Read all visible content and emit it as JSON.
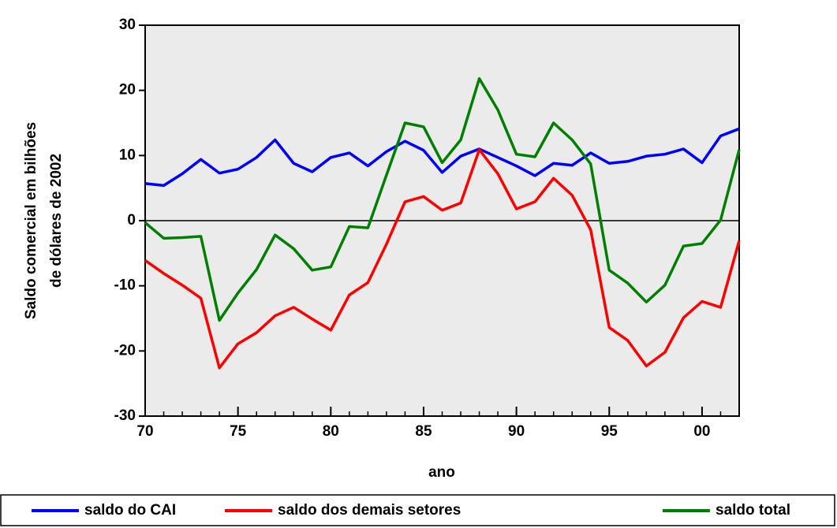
{
  "chart_data": {
    "type": "line",
    "ylabel": [
      "Saldo comercial em bilhões",
      "de dólares de 2002"
    ],
    "xlabel": "ano",
    "x": [
      1970,
      1971,
      1972,
      1973,
      1974,
      1975,
      1976,
      1977,
      1978,
      1979,
      1980,
      1981,
      1982,
      1983,
      1984,
      1985,
      1986,
      1987,
      1988,
      1989,
      1990,
      1991,
      1992,
      1993,
      1994,
      1995,
      1996,
      1997,
      1998,
      1999,
      2000,
      2001,
      2002
    ],
    "series": [
      {
        "name": "saldo do CAI",
        "color": "#0000ff",
        "values": [
          5.7,
          5.4,
          7.2,
          9.4,
          7.3,
          7.9,
          9.7,
          12.4,
          8.8,
          7.5,
          9.7,
          10.4,
          8.4,
          10.6,
          12.2,
          10.8,
          7.4,
          9.9,
          11.0,
          9.7,
          8.4,
          6.9,
          8.8,
          8.5,
          10.4,
          8.8,
          9.1,
          9.9,
          10.2,
          11.0,
          8.9,
          13.0,
          14.1
        ]
      },
      {
        "name": "saldo dos demais setores",
        "color": "#ff0000",
        "values": [
          -6.1,
          -8.1,
          -9.9,
          -11.9,
          -22.6,
          -18.9,
          -17.2,
          -14.6,
          -13.3,
          -15.1,
          -16.8,
          -11.4,
          -9.5,
          -3.6,
          2.9,
          3.7,
          1.6,
          2.7,
          10.9,
          7.2,
          1.8,
          2.9,
          6.5,
          3.9,
          -1.4,
          -16.4,
          -18.4,
          -22.3,
          -20.2,
          -14.9,
          -12.4,
          -13.3,
          -3.1
        ]
      },
      {
        "name": "saldo total",
        "color": "#008000",
        "values": [
          -0.3,
          -2.7,
          -2.6,
          -2.4,
          -15.3,
          -11.1,
          -7.5,
          -2.2,
          -4.3,
          -7.6,
          -7.1,
          -0.9,
          -1.1,
          7.0,
          15.0,
          14.4,
          8.9,
          12.4,
          21.8,
          17.0,
          10.2,
          9.8,
          15.0,
          12.4,
          8.7,
          -7.6,
          -9.6,
          -12.5,
          -9.9,
          -3.9,
          -3.5,
          0.1,
          10.9
        ]
      }
    ],
    "xlim": [
      1970,
      2002
    ],
    "xticks": [
      {
        "value": 1970,
        "label": "70"
      },
      {
        "value": 1975,
        "label": "75"
      },
      {
        "value": 1980,
        "label": "80"
      },
      {
        "value": 1985,
        "label": "85"
      },
      {
        "value": 1990,
        "label": "90"
      },
      {
        "value": 1995,
        "label": "95"
      },
      {
        "value": 2000,
        "label": "00"
      }
    ],
    "ylim": [
      -30,
      30
    ],
    "yticks": [
      -30,
      -20,
      -10,
      0,
      10,
      20,
      30
    ],
    "legend": "bottom"
  }
}
